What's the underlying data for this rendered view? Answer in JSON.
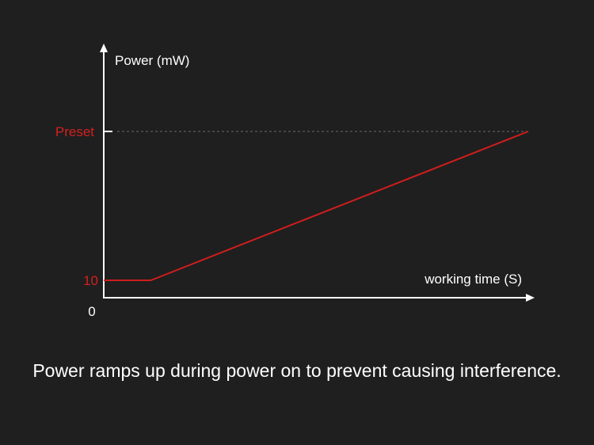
{
  "chart_data": {
    "type": "line",
    "ylabel": "Power (mW)",
    "xlabel": "working time (S)",
    "origin_label": "0",
    "y_tick_labels": [
      "10",
      "Preset"
    ],
    "series": [
      {
        "points": [
          [
            0,
            10
          ],
          [
            1,
            10
          ],
          [
            9,
            "Preset"
          ]
        ]
      }
    ],
    "preset_guide": "dashed",
    "grid": false
  },
  "caption": "Power ramps up during power on to prevent causing interference.",
  "colors": {
    "background": "#1f1f1f",
    "axis": "#ffffff",
    "line": "#d01d1d",
    "tick_label_red": "#d42020",
    "guide": "#6a6a6a"
  }
}
